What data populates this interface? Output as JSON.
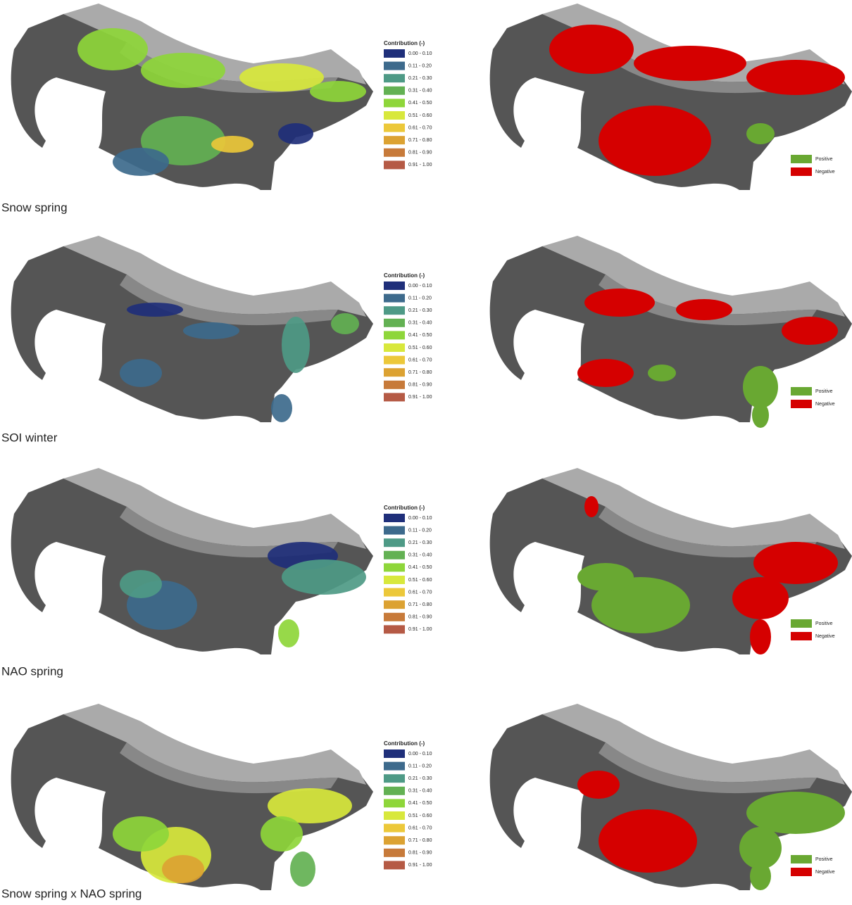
{
  "rows": [
    {
      "label": "Snow spring",
      "legend": {
        "title": "Contribution (-)",
        "items": [
          {
            "label": "0.00 - 0.10",
            "color": "#1f2f7a"
          },
          {
            "label": "0.11 - 0.20",
            "color": "#3d6a8c"
          },
          {
            "label": "0.21 - 0.30",
            "color": "#4e9a86"
          },
          {
            "label": "0.31 - 0.40",
            "color": "#63b153"
          },
          {
            "label": "0.41 - 0.50",
            "color": "#8ed63a"
          },
          {
            "label": "0.51 - 0.60",
            "color": "#d8e83c"
          },
          {
            "label": "0.61 - 0.70",
            "color": "#ecc83a"
          },
          {
            "label": "0.71 - 0.80",
            "color": "#dca232"
          },
          {
            "label": "0.81 - 0.90",
            "color": "#c77a3a"
          },
          {
            "label": "0.91 - 1.00",
            "color": "#b55a45"
          }
        ]
      },
      "sign_legend": [
        {
          "label": "Positive",
          "color": "#69a832"
        },
        {
          "label": "Negative",
          "color": "#d50000"
        }
      ]
    },
    {
      "label": "SOI winter",
      "legend": {
        "title": "Contribution (-)",
        "items": [
          {
            "label": "0.00 - 0.10",
            "color": "#1f2f7a"
          },
          {
            "label": "0.11 - 0.20",
            "color": "#3d6a8c"
          },
          {
            "label": "0.21 - 0.30",
            "color": "#4e9a86"
          },
          {
            "label": "0.31 - 0.40",
            "color": "#63b153"
          },
          {
            "label": "0.41 - 0.50",
            "color": "#8ed63a"
          },
          {
            "label": "0.51 - 0.60",
            "color": "#d8e83c"
          },
          {
            "label": "0.61 - 0.70",
            "color": "#ecc83a"
          },
          {
            "label": "0.71 - 0.80",
            "color": "#dca232"
          },
          {
            "label": "0.81 - 0.90",
            "color": "#c77a3a"
          },
          {
            "label": "0.91 - 1.00",
            "color": "#b55a45"
          }
        ]
      },
      "sign_legend": [
        {
          "label": "Positive",
          "color": "#69a832"
        },
        {
          "label": "Negative",
          "color": "#d50000"
        }
      ]
    },
    {
      "label": "NAO spring",
      "legend": {
        "title": "Contribution (-)",
        "items": [
          {
            "label": "0.00 - 0.10",
            "color": "#1f2f7a"
          },
          {
            "label": "0.11 - 0.20",
            "color": "#3d6a8c"
          },
          {
            "label": "0.21 - 0.30",
            "color": "#4e9a86"
          },
          {
            "label": "0.31 - 0.40",
            "color": "#63b153"
          },
          {
            "label": "0.41 - 0.50",
            "color": "#8ed63a"
          },
          {
            "label": "0.51 - 0.60",
            "color": "#d8e83c"
          },
          {
            "label": "0.61 - 0.70",
            "color": "#ecc83a"
          },
          {
            "label": "0.71 - 0.80",
            "color": "#dca232"
          },
          {
            "label": "0.81 - 0.90",
            "color": "#c77a3a"
          },
          {
            "label": "0.91 - 1.00",
            "color": "#b55a45"
          }
        ]
      },
      "sign_legend": [
        {
          "label": "Positive",
          "color": "#69a832"
        },
        {
          "label": "Negative",
          "color": "#d50000"
        }
      ]
    },
    {
      "label": "Snow spring x NAO spring",
      "legend": {
        "title": "Contribution (-)",
        "items": [
          {
            "label": "0.00 - 0.10",
            "color": "#1f2f7a"
          },
          {
            "label": "0.11 - 0.20",
            "color": "#3d6a8c"
          },
          {
            "label": "0.21 - 0.30",
            "color": "#4e9a86"
          },
          {
            "label": "0.31 - 0.40",
            "color": "#63b153"
          },
          {
            "label": "0.41 - 0.50",
            "color": "#8ed63a"
          },
          {
            "label": "0.51 - 0.60",
            "color": "#d8e83c"
          },
          {
            "label": "0.61 - 0.70",
            "color": "#ecc83a"
          },
          {
            "label": "0.71 - 0.80",
            "color": "#dca232"
          },
          {
            "label": "0.81 - 0.90",
            "color": "#c77a3a"
          },
          {
            "label": "0.91 - 1.00",
            "color": "#b55a45"
          }
        ]
      },
      "sign_legend": [
        {
          "label": "Positive",
          "color": "#69a832"
        },
        {
          "label": "Negative",
          "color": "#d50000"
        }
      ]
    }
  ]
}
